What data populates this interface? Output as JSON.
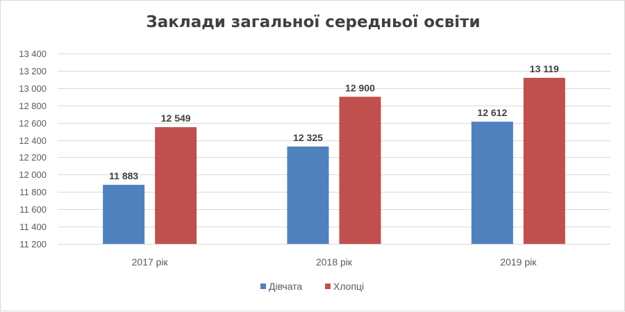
{
  "chart_data": {
    "type": "bar",
    "title": "Заклади загальної середньої освіти",
    "categories": [
      "2017 рік",
      "2018 рік",
      "2019 рік"
    ],
    "series": [
      {
        "name": "Дівчата",
        "color": "#4f81bd",
        "values": [
          11883,
          12325,
          12612
        ],
        "labels": [
          "11 883",
          "12 325",
          "12 612"
        ]
      },
      {
        "name": "Хлопці",
        "color": "#c0504d",
        "values": [
          12549,
          12900,
          13119
        ],
        "labels": [
          "12 549",
          "12 900",
          "13 119"
        ]
      }
    ],
    "ylim": [
      11200,
      13400
    ],
    "yticks": [
      11200,
      11400,
      11600,
      11800,
      12000,
      12200,
      12400,
      12600,
      12800,
      13000,
      13200,
      13400
    ],
    "ytick_labels": [
      "11 200",
      "11 400",
      "11 600",
      "11 800",
      "12 000",
      "12 200",
      "12 400",
      "12 600",
      "12 800",
      "13 000",
      "13 200",
      "13 400"
    ],
    "grid": true,
    "legend_position": "bottom",
    "xlabel": "",
    "ylabel": ""
  }
}
